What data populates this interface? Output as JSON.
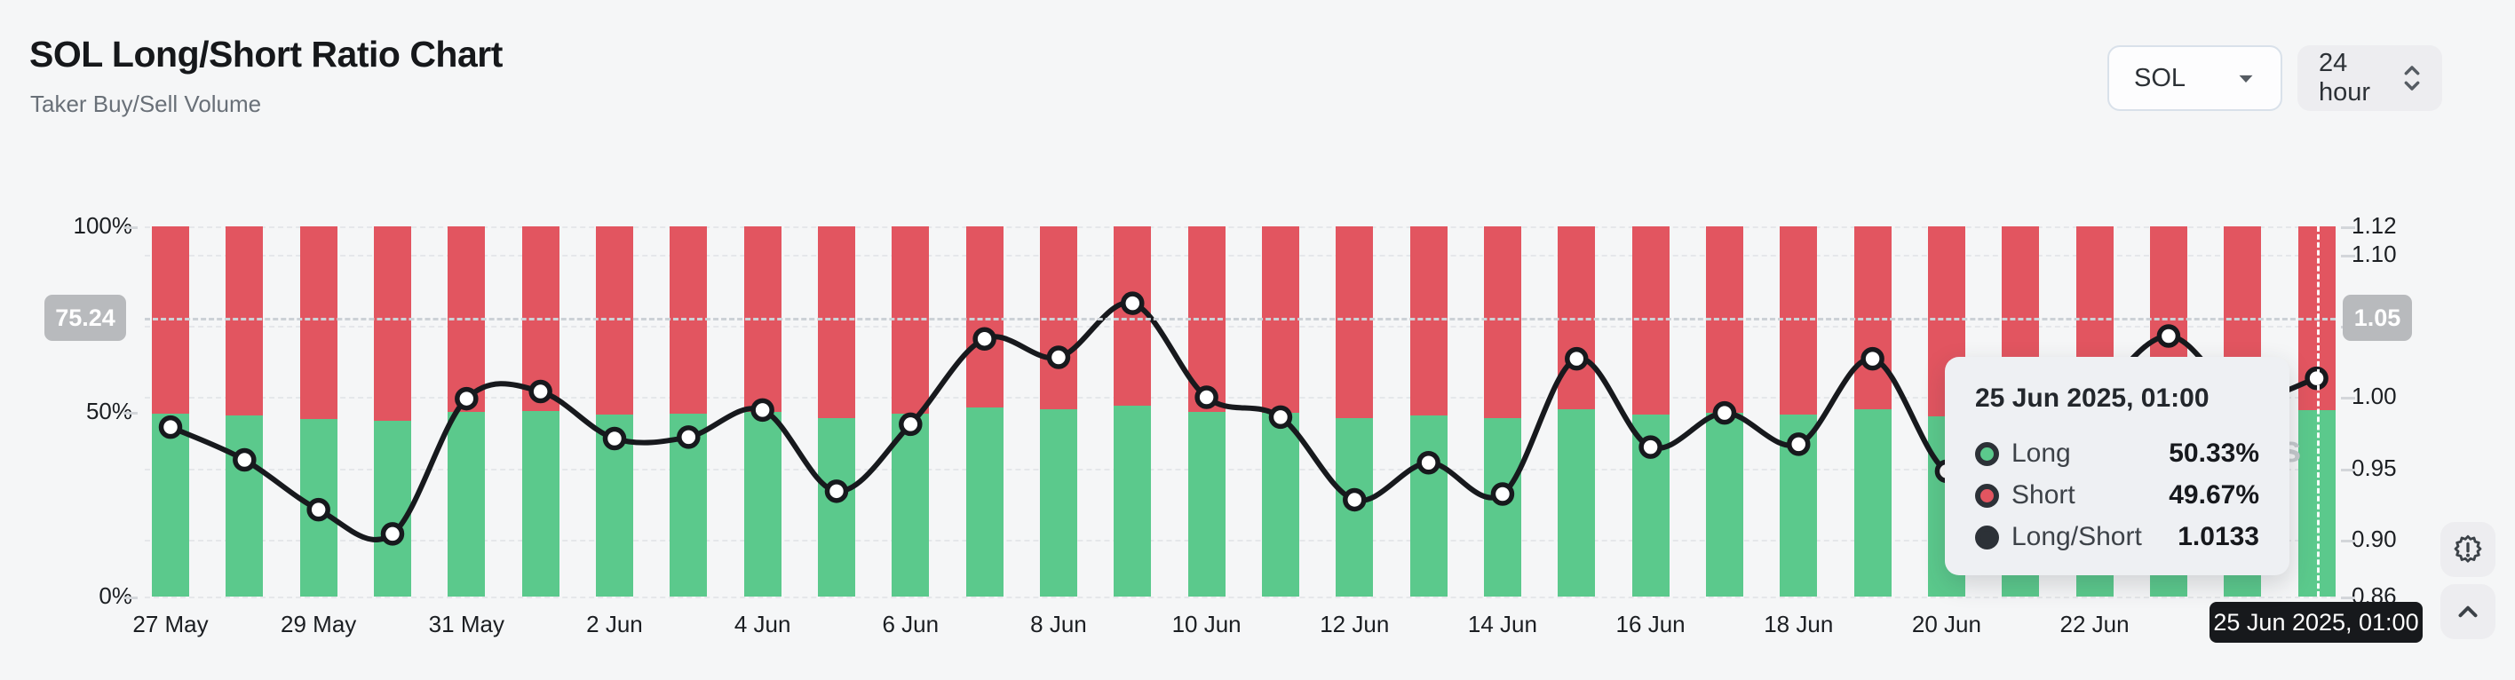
{
  "header": {
    "title": "SOL Long/Short Ratio Chart",
    "subtitle": "Taker Buy/Sell Volume"
  },
  "controls": {
    "symbol_select": {
      "value": "SOL",
      "icon": "caret-down-icon"
    },
    "interval_select": {
      "value": "24 hour",
      "icon": "up-down-chevrons-icon"
    }
  },
  "colors": {
    "long_green": "#5bc98c",
    "short_red": "#e25560",
    "line_black": "#17191d",
    "badge_gray": "#b8babd",
    "page_bg": "#f5f6f7"
  },
  "chart_data": {
    "type": "bar+line",
    "title": "SOL Long/Short Ratio Chart",
    "legend": [
      "Long",
      "Short",
      "Long/Short"
    ],
    "left_axis": {
      "label": "percent",
      "min": 0,
      "max": 100,
      "tick_labels": [
        "100%",
        "50%",
        "0%"
      ],
      "tick_values": [
        100,
        50,
        0
      ]
    },
    "right_axis": {
      "label": "long/short ratio",
      "min": 0.86,
      "max": 1.12,
      "tick_labels": [
        "1.12",
        "1.10",
        "1.05",
        "1.00",
        "0.95",
        "0.90",
        "0.86"
      ],
      "tick_values": [
        1.12,
        1.1,
        1.05,
        1.0,
        0.95,
        0.9,
        0.86
      ]
    },
    "x_tick_labels": [
      "27 May",
      "29 May",
      "31 May",
      "2 Jun",
      "4 Jun",
      "6 Jun",
      "8 Jun",
      "10 Jun",
      "12 Jun",
      "14 Jun",
      "16 Jun",
      "18 Jun",
      "20 Jun",
      "22 Jun"
    ],
    "points": [
      {
        "date": "27 May",
        "long": 49.47,
        "short": 50.53,
        "ratio": 0.979
      },
      {
        "date": "28 May",
        "long": 48.88,
        "short": 51.12,
        "ratio": 0.956
      },
      {
        "date": "29 May",
        "long": 47.94,
        "short": 52.06,
        "ratio": 0.921
      },
      {
        "date": "30 May",
        "long": 47.48,
        "short": 52.52,
        "ratio": 0.904
      },
      {
        "date": "31 May",
        "long": 49.97,
        "short": 50.03,
        "ratio": 0.999
      },
      {
        "date": "1 Jun",
        "long": 50.1,
        "short": 49.9,
        "ratio": 1.004
      },
      {
        "date": "2 Jun",
        "long": 49.26,
        "short": 50.74,
        "ratio": 0.971
      },
      {
        "date": "3 Jun",
        "long": 49.29,
        "short": 50.71,
        "ratio": 0.972
      },
      {
        "date": "4 Jun",
        "long": 49.77,
        "short": 50.23,
        "ratio": 0.991
      },
      {
        "date": "5 Jun",
        "long": 48.29,
        "short": 51.71,
        "ratio": 0.934
      },
      {
        "date": "6 Jun",
        "long": 49.52,
        "short": 50.48,
        "ratio": 0.981
      },
      {
        "date": "7 Jun",
        "long": 51.0,
        "short": 49.0,
        "ratio": 1.041
      },
      {
        "date": "8 Jun",
        "long": 50.69,
        "short": 49.31,
        "ratio": 1.028
      },
      {
        "date": "9 Jun",
        "long": 51.6,
        "short": 48.4,
        "ratio": 1.066
      },
      {
        "date": "10 Jun",
        "long": 50.0,
        "short": 50.0,
        "ratio": 1.0
      },
      {
        "date": "11 Jun",
        "long": 49.65,
        "short": 50.35,
        "ratio": 0.986
      },
      {
        "date": "12 Jun",
        "long": 48.13,
        "short": 51.87,
        "ratio": 0.928
      },
      {
        "date": "13 Jun",
        "long": 48.82,
        "short": 51.18,
        "ratio": 0.954
      },
      {
        "date": "14 Jun",
        "long": 48.24,
        "short": 51.76,
        "ratio": 0.932
      },
      {
        "date": "15 Jun",
        "long": 50.67,
        "short": 49.33,
        "ratio": 1.027
      },
      {
        "date": "16 Jun",
        "long": 49.11,
        "short": 50.89,
        "ratio": 0.965
      },
      {
        "date": "17 Jun",
        "long": 49.72,
        "short": 50.28,
        "ratio": 0.989
      },
      {
        "date": "18 Jun",
        "long": 49.16,
        "short": 50.84,
        "ratio": 0.967
      },
      {
        "date": "19 Jun",
        "long": 50.67,
        "short": 49.33,
        "ratio": 1.027
      },
      {
        "date": "20 Jun",
        "long": 48.67,
        "short": 51.33,
        "ratio": 0.948
      },
      {
        "date": "21 Jun",
        "long": 48.98,
        "short": 51.02,
        "ratio": 0.96
      },
      {
        "date": "22 Jun",
        "long": 50.0,
        "short": 50.0,
        "ratio": 1.0
      },
      {
        "date": "23 Jun",
        "long": 51.05,
        "short": 48.95,
        "ratio": 1.043
      },
      {
        "date": "24 Jun",
        "long": 50.0,
        "short": 50.0,
        "ratio": 1.0
      },
      {
        "date": "25 Jun",
        "long": 50.33,
        "short": 49.67,
        "ratio": 1.0133
      }
    ],
    "crosshair": {
      "percent_value": 75.24,
      "ratio_value": 1.05,
      "left_badge": "75.24",
      "right_badge": "1.05",
      "x_label": "25 Jun 2025, 01:00",
      "x_point_index": 29
    },
    "tooltip": {
      "title": "25 Jun 2025, 01:00",
      "rows": [
        {
          "label": "Long",
          "value": "50.33%",
          "color": "#5bc98c"
        },
        {
          "label": "Short",
          "value": "49.67%",
          "color": "#e25560"
        },
        {
          "label": "Long/Short",
          "value": "1.0133",
          "color": "#2c3137"
        }
      ]
    },
    "watermark": "s"
  }
}
